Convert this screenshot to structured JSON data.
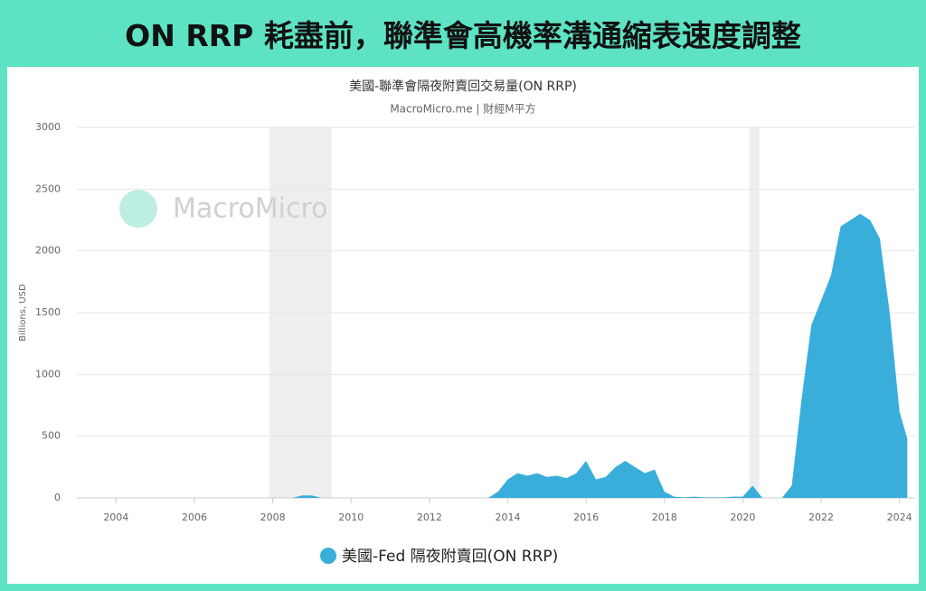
{
  "header": {
    "title": "ON RRP 耗盡前，聯準會高機率溝通縮表速度調整"
  },
  "chart_data": {
    "type": "area",
    "title": "美國-聯準會隔夜附賣回交易量(ON RRP)",
    "subtitle": "MacroMicro.me | 財經M平方",
    "watermark": "MacroMicro",
    "y_label": "Billions, USD",
    "xlim": [
      2003,
      2024.4
    ],
    "xticks": [
      2004,
      2006,
      2008,
      2010,
      2012,
      2014,
      2016,
      2018,
      2020,
      2022,
      2024
    ],
    "ylim": [
      0,
      3000
    ],
    "yticks": [
      0,
      500,
      1000,
      1500,
      2000,
      2500,
      3000
    ],
    "grid": true,
    "recessions": [
      [
        2007.92,
        2009.5
      ],
      [
        2020.17,
        2020.42
      ]
    ],
    "series": [
      {
        "name": "美國-Fed 隔夜附賣回(ON RRP)",
        "color": "#3aaedb",
        "x": [
          2003,
          2003.25,
          2003.5,
          2003.75,
          2004,
          2004.25,
          2004.5,
          2004.75,
          2005,
          2005.25,
          2005.5,
          2005.75,
          2006,
          2006.25,
          2006.5,
          2006.75,
          2007,
          2007.25,
          2007.5,
          2007.75,
          2008,
          2008.25,
          2008.5,
          2008.75,
          2009,
          2009.25,
          2009.5,
          2009.75,
          2010,
          2010.25,
          2010.5,
          2010.75,
          2011,
          2011.25,
          2011.5,
          2011.75,
          2012,
          2012.25,
          2012.5,
          2012.75,
          2013,
          2013.25,
          2013.5,
          2013.75,
          2014,
          2014.25,
          2014.5,
          2014.75,
          2015,
          2015.25,
          2015.5,
          2015.75,
          2016,
          2016.25,
          2016.5,
          2016.75,
          2017,
          2017.25,
          2017.5,
          2017.75,
          2018,
          2018.25,
          2018.5,
          2018.75,
          2019,
          2019.25,
          2019.5,
          2019.75,
          2020,
          2020.25,
          2020.5,
          2020.75,
          2021,
          2021.25,
          2021.5,
          2021.75,
          2022,
          2022.25,
          2022.5,
          2022.75,
          2023,
          2023.25,
          2023.5,
          2023.75,
          2024,
          2024.2
        ],
        "values": [
          0,
          0,
          0,
          0,
          0,
          0,
          0,
          0,
          0,
          0,
          0,
          0,
          0,
          0,
          0,
          0,
          0,
          0,
          0,
          0,
          0,
          0,
          0,
          20,
          20,
          0,
          0,
          0,
          0,
          0,
          0,
          0,
          0,
          0,
          0,
          0,
          0,
          0,
          0,
          0,
          0,
          0,
          0,
          50,
          150,
          200,
          180,
          200,
          170,
          180,
          160,
          200,
          300,
          150,
          170,
          250,
          300,
          250,
          200,
          230,
          50,
          10,
          5,
          10,
          5,
          5,
          5,
          10,
          10,
          100,
          0,
          0,
          0,
          100,
          800,
          1400,
          1600,
          1800,
          2200,
          2250,
          2300,
          2250,
          2100,
          1500,
          700,
          480
        ]
      }
    ],
    "legend": "bottom"
  }
}
